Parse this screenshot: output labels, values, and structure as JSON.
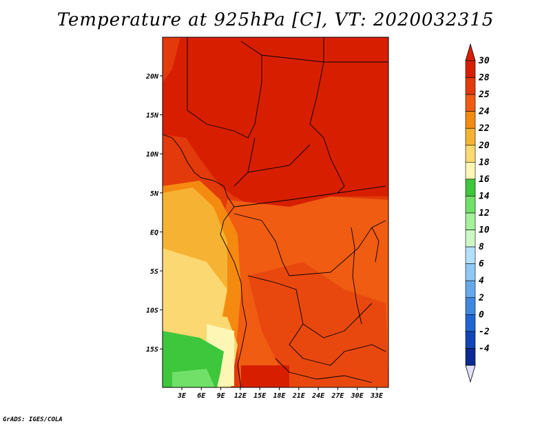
{
  "title": "Temperature at 925hPa [C], VT: 2020032315",
  "credit": "GrADS: IGES/COLA",
  "map": {
    "lon_ticks": [
      "3E",
      "6E",
      "9E",
      "12E",
      "15E",
      "18E",
      "21E",
      "24E",
      "27E",
      "30E",
      "33E"
    ],
    "lat_ticks": [
      "20N",
      "15N",
      "10N",
      "5N",
      "EQ",
      "5S",
      "10S",
      "15S"
    ]
  },
  "colorbar": {
    "levels": [
      "30",
      "28",
      "25",
      "24",
      "22",
      "20",
      "18",
      "16",
      "14",
      "12",
      "10",
      "8",
      "6",
      "4",
      "2",
      "0",
      "-2",
      "-4"
    ],
    "colors": [
      "#d71f00",
      "#e33a0b",
      "#f05c12",
      "#f58a10",
      "#f6b333",
      "#fbd871",
      "#fdf6b4",
      "#3ec63c",
      "#71e069",
      "#a5f09b",
      "#cdf8c6",
      "#b3e0ff",
      "#8ec8f5",
      "#66a8ec",
      "#3f88e0",
      "#1f66d2",
      "#1145b7",
      "#0b2a94",
      "#0b1577",
      "#e0e0ff"
    ],
    "top_arrow_color": "#d71f00",
    "bottom_arrow_color": "#e0e0ff"
  }
}
